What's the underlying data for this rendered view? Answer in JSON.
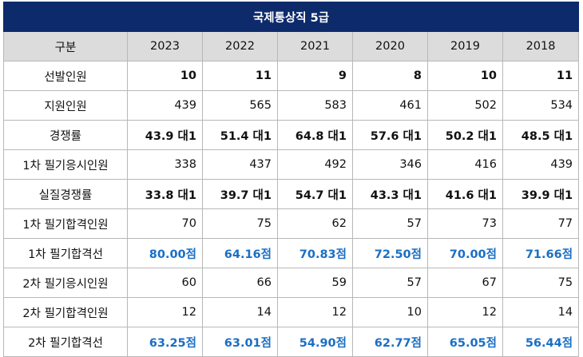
{
  "table": {
    "title": "국제통상직 5급",
    "header_label": "구분",
    "years": [
      "2023",
      "2022",
      "2021",
      "2020",
      "2019",
      "2018"
    ],
    "rows": [
      {
        "label": "선발인원",
        "style": "bold",
        "values": [
          "10",
          "11",
          "9",
          "8",
          "10",
          "11"
        ]
      },
      {
        "label": "지원인원",
        "style": "normal",
        "values": [
          "439",
          "565",
          "583",
          "461",
          "502",
          "534"
        ]
      },
      {
        "label": "경쟁률",
        "style": "bold",
        "values": [
          "43.9 대1",
          "51.4 대1",
          "64.8 대1",
          "57.6 대1",
          "50.2 대1",
          "48.5 대1"
        ]
      },
      {
        "label": "1차 필기응시인원",
        "style": "normal",
        "values": [
          "338",
          "437",
          "492",
          "346",
          "416",
          "439"
        ]
      },
      {
        "label": "실질경쟁률",
        "style": "bold",
        "values": [
          "33.8 대1",
          "39.7 대1",
          "54.7 대1",
          "43.3 대1",
          "41.6 대1",
          "39.9 대1"
        ]
      },
      {
        "label": "1차 필기합격인원",
        "style": "normal",
        "values": [
          "70",
          "75",
          "62",
          "57",
          "73",
          "77"
        ]
      },
      {
        "label": "1차 필기합격선",
        "style": "blue",
        "values": [
          "80.00점",
          "64.16점",
          "70.83점",
          "72.50점",
          "70.00점",
          "71.66점"
        ]
      },
      {
        "label": "2차 필기응시인원",
        "style": "normal",
        "values": [
          "60",
          "66",
          "59",
          "57",
          "67",
          "75"
        ]
      },
      {
        "label": "2차 필기합격인원",
        "style": "normal",
        "values": [
          "12",
          "14",
          "12",
          "10",
          "12",
          "14"
        ]
      },
      {
        "label": "2차 필기합격선",
        "style": "blue",
        "values": [
          "63.25점",
          "63.01점",
          "54.90점",
          "62.77점",
          "65.05점",
          "56.44점"
        ]
      }
    ]
  },
  "colors": {
    "title_bg": "#0d2a6b",
    "header_bg": "#dcdcdc",
    "highlight_blue": "#1a6fc4",
    "border": "#b8b8b8"
  }
}
